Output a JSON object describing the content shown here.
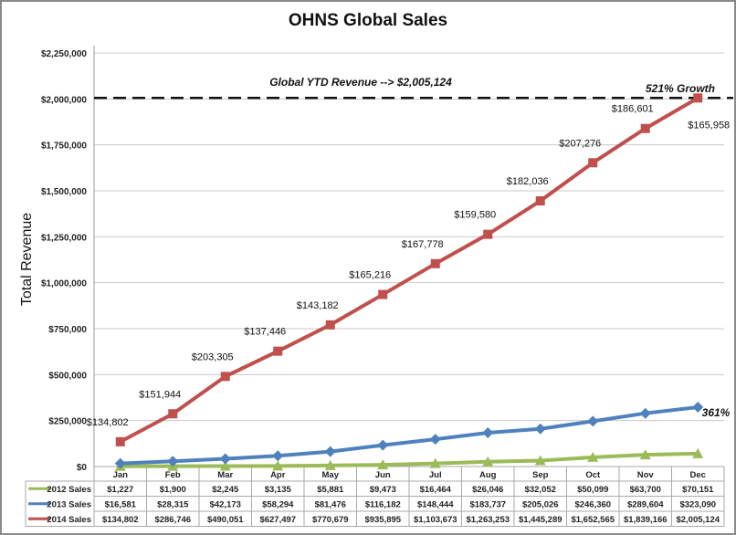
{
  "chart_data": {
    "type": "line",
    "title": "OHNS Global Sales",
    "xlabel": "",
    "ylabel": "Total Revenue",
    "ylim": [
      0,
      2250000
    ],
    "yticks": [
      "$0",
      "$250,000",
      "$500,000",
      "$750,000",
      "$1,000,000",
      "$1,250,000",
      "$1,500,000",
      "$1,750,000",
      "$2,000,000",
      "$2,250,000"
    ],
    "grid": true,
    "legend": "data-table-bottom",
    "categories": [
      "Jan",
      "Feb",
      "Mar",
      "Apr",
      "May",
      "Jun",
      "Jul",
      "Aug",
      "Sep",
      "Oct",
      "Nov",
      "Dec"
    ],
    "series": [
      {
        "name": "2012 Sales",
        "color": "#9bbb59",
        "marker": "triangle",
        "values": [
          1227,
          1900,
          2245,
          3135,
          5881,
          9473,
          16464,
          26046,
          32052,
          50099,
          63700,
          70151
        ],
        "labels": [
          "$1,227",
          "$1,900",
          "$2,245",
          "$3,135",
          "$5,881",
          "$9,473",
          "$16,464",
          "$26,046",
          "$32,052",
          "$50,099",
          "$63,700",
          "$70,151"
        ]
      },
      {
        "name": "2013 Sales",
        "color": "#4f81bd",
        "marker": "diamond",
        "values": [
          16581,
          28315,
          42173,
          58294,
          81476,
          116182,
          148444,
          183737,
          205026,
          246360,
          289604,
          323090
        ],
        "labels": [
          "$16,581",
          "$28,315",
          "$42,173",
          "$58,294",
          "$81,476",
          "$116,182",
          "$148,444",
          "$183,737",
          "$205,026",
          "$246,360",
          "$289,604",
          "$323,090"
        ]
      },
      {
        "name": "2014 Sales",
        "color": "#c0504d",
        "marker": "square",
        "values": [
          134802,
          286746,
          490051,
          627497,
          770679,
          935895,
          1103673,
          1263253,
          1445289,
          1652565,
          1839166,
          2005124
        ],
        "labels": [
          "$134,802",
          "$286,746",
          "$490,051",
          "$627,497",
          "$770,679",
          "$935,895",
          "$1,103,673",
          "$1,263,253",
          "$1,445,289",
          "$1,652,565",
          "$1,839,166",
          "$2,005,124"
        ]
      }
    ],
    "point_labels_2014": [
      "$134,802",
      "$151,944",
      "$203,305",
      "$137,446",
      "$143,182",
      "$165,216",
      "$167,778",
      "$159,580",
      "$182,036",
      "$207,276",
      "$186,601",
      "$165,958"
    ],
    "reference_line": {
      "value": 2005124,
      "style": "dashed",
      "label": "Global YTD Revenue --> $2,005,124"
    },
    "annotations": {
      "growth_2014": "521% Growth",
      "growth_2013": "361%"
    }
  }
}
